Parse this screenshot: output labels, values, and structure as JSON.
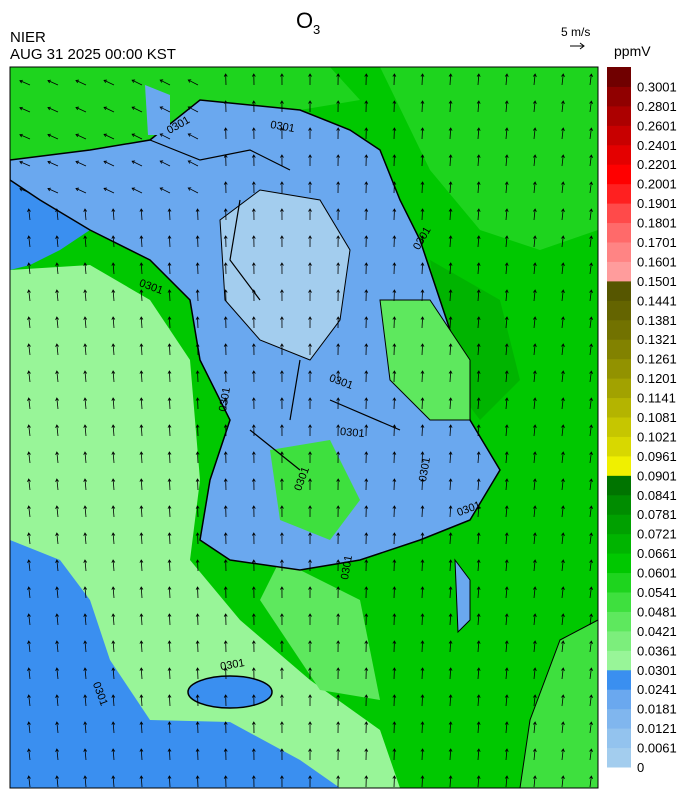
{
  "header": {
    "title": "O",
    "title_subscript": "3",
    "source": "NIER",
    "datetime": "AUG 31 2025 00:00 KST"
  },
  "wind_scale": {
    "label": "5 m/s"
  },
  "colorbar": {
    "unit": "ppmV",
    "labels": [
      "0",
      "0.0061",
      "0.0121",
      "0.0181",
      "0.0241",
      "0.0301",
      "0.0361",
      "0.0421",
      "0.0481",
      "0.0541",
      "0.0601",
      "0.0661",
      "0.0721",
      "0.0781",
      "0.0841",
      "0.0901",
      "0.0961",
      "0.1021",
      "0.1081",
      "0.1141",
      "0.1201",
      "0.1261",
      "0.1321",
      "0.1381",
      "0.1441",
      "0.1501",
      "0.1601",
      "0.1701",
      "0.1801",
      "0.1901",
      "0.2001",
      "0.2201",
      "0.2401",
      "0.2601",
      "0.2801",
      "0.3001"
    ],
    "colors": [
      "#a3cdee",
      "#93c3ee",
      "#80b6ee",
      "#6aa8ef",
      "#3a8ff0",
      "#98f598",
      "#7cee7c",
      "#5ee85e",
      "#3ee03e",
      "#1ed41e",
      "#00c800",
      "#00b400",
      "#00a000",
      "#008c00",
      "#007400",
      "#f0f000",
      "#d8d800",
      "#c6c600",
      "#b4b400",
      "#a2a200",
      "#929200",
      "#828200",
      "#727200",
      "#646400",
      "#565600",
      "#ff9c9c",
      "#ff8484",
      "#ff6a6a",
      "#ff4a4a",
      "#ff2020",
      "#ff0000",
      "#e40000",
      "#c80000",
      "#ac0000",
      "#900000",
      "#700000"
    ]
  },
  "contour_labels": [
    "0301",
    "0301",
    "0301",
    "0301",
    "0301",
    "0301",
    "0301",
    "0301",
    "0301",
    "0301",
    "0301",
    "0301",
    "0301"
  ]
}
